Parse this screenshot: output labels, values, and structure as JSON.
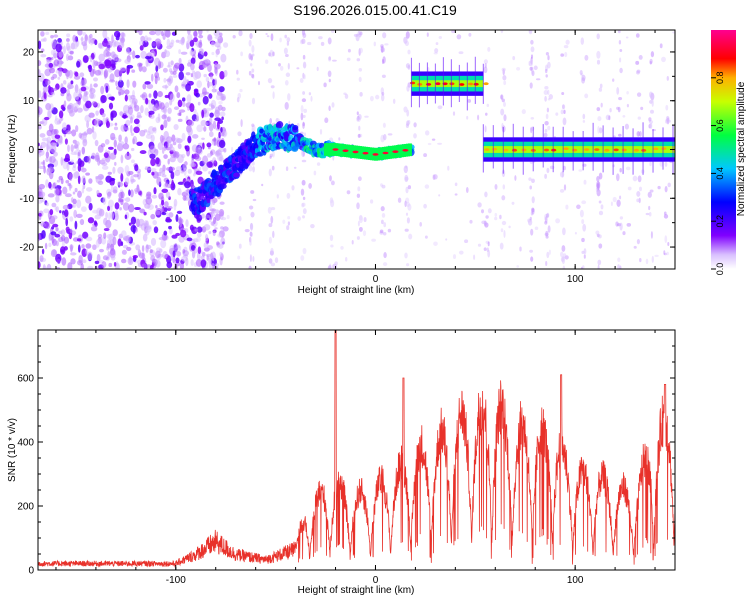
{
  "title": "S196.2026.015.00.41.C19",
  "chart_data": [
    {
      "type": "heatmap",
      "name": "spectrogram",
      "xlabel": "Height of straight line (km)",
      "ylabel": "Frequency (Hz)",
      "xlim": [
        -169,
        150
      ],
      "ylim": [
        -24.5,
        24.5
      ],
      "xticks": [
        -100,
        0,
        100
      ],
      "xtick_labels": [
        "-100",
        "0",
        "100"
      ],
      "yticks": [
        -20,
        -10,
        0,
        10,
        20
      ],
      "ytick_labels": [
        "-20",
        "-10",
        "0",
        "10",
        "20"
      ],
      "colorbar": {
        "label": "Normalized spectral amplitude",
        "range": [
          0,
          1
        ],
        "ticks": [
          0.0,
          0.2,
          0.4,
          0.6,
          0.8
        ],
        "tick_labels": [
          "0.0",
          "0.2",
          "0.4",
          "0.6",
          "0.8"
        ],
        "colormap": [
          "#ffffff",
          "#8000ff",
          "#0000ff",
          "#00ffff",
          "#00ff00",
          "#ffff00",
          "#ff0000",
          "#ff00ff"
        ]
      },
      "ridge": [
        {
          "x": -90,
          "freq": -11
        },
        {
          "x": -80,
          "freq": -7
        },
        {
          "x": -70,
          "freq": -3
        },
        {
          "x": -60,
          "freq": 1
        },
        {
          "x": -50,
          "freq": 3
        },
        {
          "x": -40,
          "freq": 2
        },
        {
          "x": -30,
          "freq": 0
        },
        {
          "x": -20,
          "freq": 0
        },
        {
          "x": 0,
          "freq": -1
        },
        {
          "x": 18,
          "freq": 0
        }
      ],
      "segments": [
        {
          "x_start": 18,
          "x_end": 54,
          "freq": 13.5,
          "amplitude": 0.85
        },
        {
          "x_start": 54,
          "x_end": 150,
          "freq": 0,
          "amplitude": 0.8
        }
      ],
      "noise_region": {
        "x_start": -169,
        "x_end": -90
      }
    },
    {
      "type": "line",
      "name": "snr",
      "xlabel": "Height of straight line (km)",
      "ylabel": "SNR (10 * v/v)",
      "xlim": [
        -169,
        150
      ],
      "ylim": [
        0,
        750
      ],
      "xticks": [
        -100,
        0,
        100
      ],
      "xtick_labels": [
        "-100",
        "0",
        "100"
      ],
      "yticks": [
        0,
        200,
        400,
        600
      ],
      "ytick_labels": [
        "0",
        "200",
        "400",
        "600"
      ],
      "color": "#e8312a",
      "envelope": [
        {
          "x": -169,
          "y": 25
        },
        {
          "x": -100,
          "y": 25
        },
        {
          "x": -90,
          "y": 60
        },
        {
          "x": -80,
          "y": 110
        },
        {
          "x": -70,
          "y": 60
        },
        {
          "x": -55,
          "y": 40
        },
        {
          "x": -40,
          "y": 80
        },
        {
          "x": -35,
          "y": 200
        },
        {
          "x": -25,
          "y": 280
        },
        {
          "x": -20,
          "y": 300
        },
        {
          "x": -10,
          "y": 250
        },
        {
          "x": 0,
          "y": 280
        },
        {
          "x": 10,
          "y": 330
        },
        {
          "x": 20,
          "y": 400
        },
        {
          "x": 30,
          "y": 430
        },
        {
          "x": 40,
          "y": 500
        },
        {
          "x": 50,
          "y": 540
        },
        {
          "x": 60,
          "y": 560
        },
        {
          "x": 70,
          "y": 480
        },
        {
          "x": 80,
          "y": 470
        },
        {
          "x": 90,
          "y": 450
        },
        {
          "x": 100,
          "y": 330
        },
        {
          "x": 110,
          "y": 320
        },
        {
          "x": 120,
          "y": 280
        },
        {
          "x": 130,
          "y": 260
        },
        {
          "x": 140,
          "y": 480
        },
        {
          "x": 150,
          "y": 520
        }
      ],
      "peaks": [
        {
          "x": -20,
          "y": 750
        },
        {
          "x": 14,
          "y": 600
        },
        {
          "x": 93,
          "y": 610
        },
        {
          "x": 145,
          "y": 580
        }
      ]
    }
  ]
}
